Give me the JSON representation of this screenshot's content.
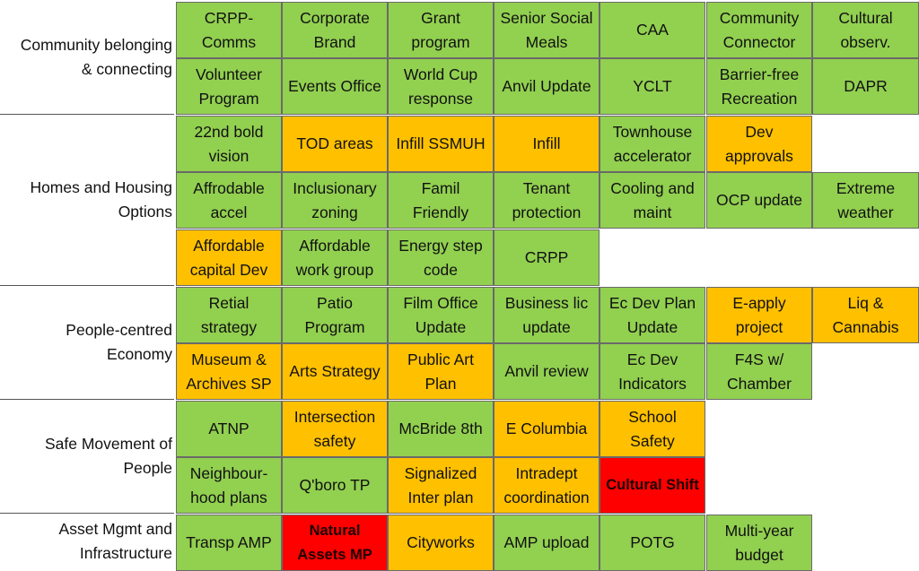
{
  "colors": {
    "green": "#92d050",
    "orange": "#ffc000",
    "red": "#ff0000"
  },
  "categories": [
    {
      "label": "Community belonging\n& connecting"
    },
    {
      "label": "Homes and Housing\nOptions"
    },
    {
      "label": "People-centred\nEconomy"
    },
    {
      "label": "Safe Movement of\nPeople"
    },
    {
      "label": "Asset Mgmt and\nInfrastructure"
    }
  ],
  "rows": [
    {
      "group": 0,
      "cells": [
        {
          "text": "CRPP-\nComms",
          "status": "green"
        },
        {
          "text": "Corporate\nBrand",
          "status": "green"
        },
        {
          "text": "Grant\nprogram",
          "status": "green"
        },
        {
          "text": "Senior Social\nMeals",
          "status": "green"
        },
        {
          "text": "CAA",
          "status": "green"
        },
        {
          "text": "Community\nConnector",
          "status": "green"
        },
        {
          "text": "Cultural\nobserv.",
          "status": "green"
        }
      ]
    },
    {
      "group": 0,
      "cells": [
        {
          "text": "Volunteer\nProgram",
          "status": "green"
        },
        {
          "text": "Events Office",
          "status": "green"
        },
        {
          "text": "World Cup\nresponse",
          "status": "green"
        },
        {
          "text": "Anvil Update",
          "status": "green"
        },
        {
          "text": "YCLT",
          "status": "green"
        },
        {
          "text": "Barrier-free\nRecreation",
          "status": "green"
        },
        {
          "text": "DAPR",
          "status": "green"
        }
      ]
    },
    {
      "group": 1,
      "cells": [
        {
          "text": "22nd bold\nvision",
          "status": "green"
        },
        {
          "text": "TOD areas",
          "status": "orange"
        },
        {
          "text": "Infill SSMUH",
          "status": "orange"
        },
        {
          "text": "Infill",
          "status": "orange"
        },
        {
          "text": "Townhouse\naccelerator",
          "status": "green"
        },
        {
          "text": "Dev\napprovals",
          "status": "orange"
        }
      ]
    },
    {
      "group": 1,
      "cells": [
        {
          "text": "Affrodable\naccel",
          "status": "green"
        },
        {
          "text": "Inclusionary\nzoning",
          "status": "green"
        },
        {
          "text": "Famil\nFriendly",
          "status": "green"
        },
        {
          "text": "Tenant\nprotection",
          "status": "green"
        },
        {
          "text": "Cooling and\nmaint",
          "status": "green"
        },
        {
          "text": "OCP update",
          "status": "green"
        },
        {
          "text": "Extreme\nweather",
          "status": "green"
        }
      ]
    },
    {
      "group": 1,
      "cells": [
        {
          "text": "Affordable\ncapital Dev",
          "status": "orange"
        },
        {
          "text": "Affordable\nwork group",
          "status": "green"
        },
        {
          "text": "Energy step\ncode",
          "status": "green"
        },
        {
          "text": "CRPP",
          "status": "green"
        }
      ]
    },
    {
      "group": 2,
      "cells": [
        {
          "text": "Retial\nstrategy",
          "status": "green"
        },
        {
          "text": "Patio\nProgram",
          "status": "green"
        },
        {
          "text": "Film Office\nUpdate",
          "status": "green"
        },
        {
          "text": "Business lic\nupdate",
          "status": "green"
        },
        {
          "text": "Ec Dev Plan\nUpdate",
          "status": "green"
        },
        {
          "text": "E-apply\nproject",
          "status": "orange"
        },
        {
          "text": "Liq &\nCannabis",
          "status": "orange"
        }
      ]
    },
    {
      "group": 2,
      "cells": [
        {
          "text": "Museum &\nArchives SP",
          "status": "orange"
        },
        {
          "text": "Arts Strategy",
          "status": "orange"
        },
        {
          "text": "Public Art\nPlan",
          "status": "orange"
        },
        {
          "text": "Anvil review",
          "status": "green"
        },
        {
          "text": "Ec Dev\nIndicators",
          "status": "green"
        },
        {
          "text": "F4S w/\nChamber",
          "status": "green"
        }
      ]
    },
    {
      "group": 3,
      "cells": [
        {
          "text": "ATNP",
          "status": "green"
        },
        {
          "text": "Intersection\nsafety",
          "status": "orange"
        },
        {
          "text": "McBride 8th",
          "status": "green"
        },
        {
          "text": "E Columbia",
          "status": "orange"
        },
        {
          "text": "School\nSafety",
          "status": "orange"
        }
      ]
    },
    {
      "group": 3,
      "cells": [
        {
          "text": "Neighbour-\nhood plans",
          "status": "green"
        },
        {
          "text": "Q'boro TP",
          "status": "green"
        },
        {
          "text": "Signalized\nInter plan",
          "status": "orange"
        },
        {
          "text": "Intradept\ncoordination",
          "status": "orange"
        },
        {
          "text": "Cultural Shift",
          "status": "red",
          "bold": true
        }
      ]
    },
    {
      "group": 4,
      "cells": [
        {
          "text": "Transp AMP",
          "status": "green"
        },
        {
          "text": "Natural\nAssets MP",
          "status": "red",
          "bold": true
        },
        {
          "text": "Cityworks",
          "status": "orange"
        },
        {
          "text": "AMP upload",
          "status": "green"
        },
        {
          "text": "POTG",
          "status": "green"
        },
        {
          "text": "Multi-year\nbudget",
          "status": "green"
        }
      ]
    }
  ]
}
